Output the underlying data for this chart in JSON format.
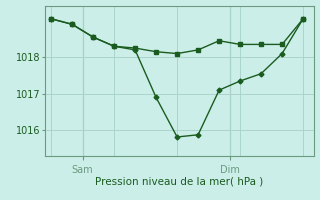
{
  "bg_color": "#cceee8",
  "line_color": "#1a5c20",
  "grid_color": "#aad4cc",
  "axis_color": "#6a9a80",
  "ylabel": "Pression niveau de la mer( hPa )",
  "ylim": [
    1015.3,
    1019.4
  ],
  "yticks": [
    1016,
    1017,
    1018
  ],
  "line1_x": [
    0,
    1,
    2,
    3,
    4,
    5,
    6,
    7,
    8,
    9,
    10,
    11,
    12
  ],
  "line1_y": [
    1019.05,
    1018.9,
    1018.55,
    1018.3,
    1018.25,
    1018.15,
    1018.1,
    1018.2,
    1018.45,
    1018.35,
    1018.35,
    1018.35,
    1019.05
  ],
  "line2_x": [
    0,
    1,
    2,
    3,
    4,
    5,
    6,
    7,
    8,
    9,
    10,
    11,
    12
  ],
  "line2_y": [
    1019.05,
    1018.9,
    1018.55,
    1018.3,
    1018.2,
    1016.9,
    1015.82,
    1015.88,
    1017.1,
    1017.35,
    1017.55,
    1018.1,
    1019.05
  ],
  "sam_x": 1.5,
  "dim_x": 8.5,
  "xlim": [
    -0.3,
    12.5
  ],
  "marker_size": 2.5,
  "linewidth": 1.0,
  "ylabel_fontsize": 7.5,
  "tick_fontsize": 7
}
